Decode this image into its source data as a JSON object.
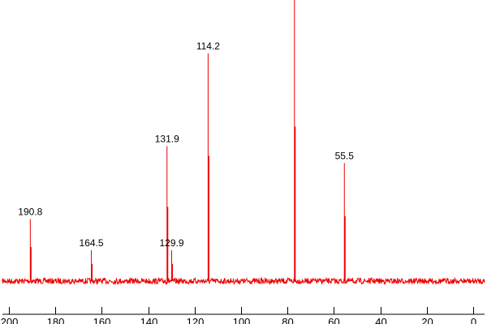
{
  "chart_data": {
    "type": "line",
    "title": "",
    "xlabel": "",
    "ylabel": "",
    "xlim": [
      202.8,
      -4.9
    ],
    "x_reversed": true,
    "grid": false,
    "x_ticks": [
      200,
      180,
      160,
      140,
      120,
      100,
      80,
      60,
      40,
      20,
      0
    ],
    "x_tick_labels": [
      "200",
      "180",
      "160",
      "140",
      "120",
      "100",
      "80",
      "60",
      "40",
      "20",
      "0"
    ],
    "line_color": "#ee0000",
    "peaks": [
      {
        "x": 190.8,
        "intensity": 0.22,
        "label": "190.8"
      },
      {
        "x": 164.5,
        "intensity": 0.11,
        "label": "164.5"
      },
      {
        "x": 131.9,
        "intensity": 0.48,
        "label": "131.9"
      },
      {
        "x": 129.9,
        "intensity": 0.11,
        "label": "129.9"
      },
      {
        "x": 114.2,
        "intensity": 0.81,
        "label": "114.2"
      },
      {
        "x": 77.0,
        "intensity": 1.0,
        "label": ""
      },
      {
        "x": 55.5,
        "intensity": 0.42,
        "label": "55.5"
      }
    ]
  }
}
